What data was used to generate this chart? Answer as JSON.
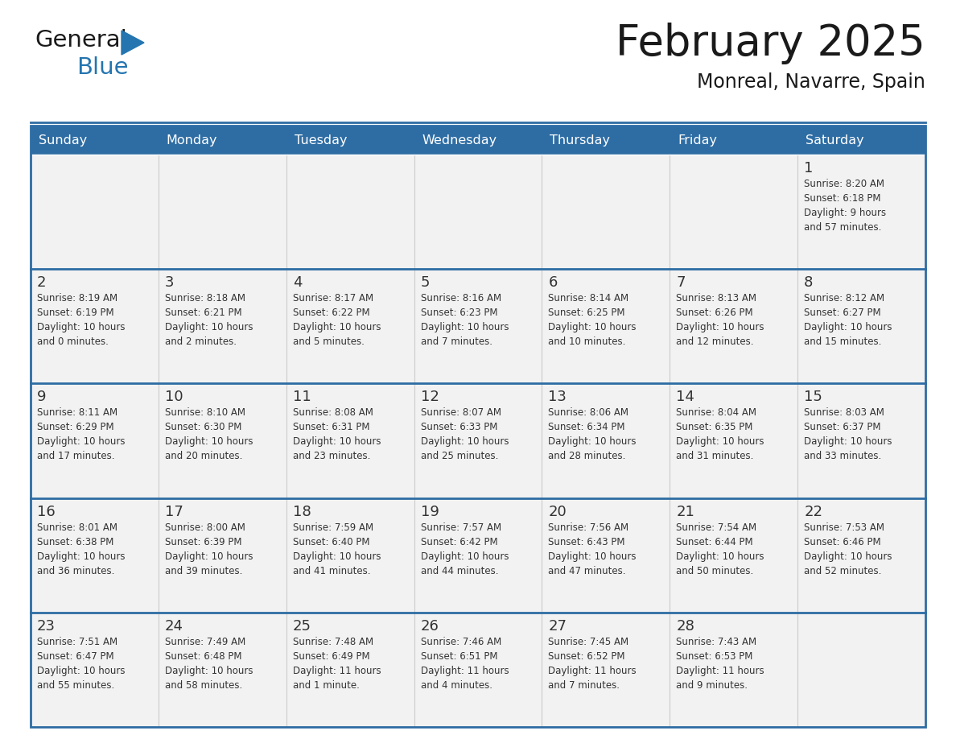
{
  "title": "February 2025",
  "subtitle": "Monreal, Navarre, Spain",
  "header_bg": "#2E6DA4",
  "header_text": "#FFFFFF",
  "cell_bg": "#F2F2F2",
  "border_color": "#2E6DA4",
  "row_separator_color": "#2E6DA4",
  "title_color": "#1a1a1a",
  "text_color": "#333333",
  "days_of_week": [
    "Sunday",
    "Monday",
    "Tuesday",
    "Wednesday",
    "Thursday",
    "Friday",
    "Saturday"
  ],
  "calendar_data": [
    [
      {
        "day": "",
        "info": ""
      },
      {
        "day": "",
        "info": ""
      },
      {
        "day": "",
        "info": ""
      },
      {
        "day": "",
        "info": ""
      },
      {
        "day": "",
        "info": ""
      },
      {
        "day": "",
        "info": ""
      },
      {
        "day": "1",
        "info": "Sunrise: 8:20 AM\nSunset: 6:18 PM\nDaylight: 9 hours\nand 57 minutes."
      }
    ],
    [
      {
        "day": "2",
        "info": "Sunrise: 8:19 AM\nSunset: 6:19 PM\nDaylight: 10 hours\nand 0 minutes."
      },
      {
        "day": "3",
        "info": "Sunrise: 8:18 AM\nSunset: 6:21 PM\nDaylight: 10 hours\nand 2 minutes."
      },
      {
        "day": "4",
        "info": "Sunrise: 8:17 AM\nSunset: 6:22 PM\nDaylight: 10 hours\nand 5 minutes."
      },
      {
        "day": "5",
        "info": "Sunrise: 8:16 AM\nSunset: 6:23 PM\nDaylight: 10 hours\nand 7 minutes."
      },
      {
        "day": "6",
        "info": "Sunrise: 8:14 AM\nSunset: 6:25 PM\nDaylight: 10 hours\nand 10 minutes."
      },
      {
        "day": "7",
        "info": "Sunrise: 8:13 AM\nSunset: 6:26 PM\nDaylight: 10 hours\nand 12 minutes."
      },
      {
        "day": "8",
        "info": "Sunrise: 8:12 AM\nSunset: 6:27 PM\nDaylight: 10 hours\nand 15 minutes."
      }
    ],
    [
      {
        "day": "9",
        "info": "Sunrise: 8:11 AM\nSunset: 6:29 PM\nDaylight: 10 hours\nand 17 minutes."
      },
      {
        "day": "10",
        "info": "Sunrise: 8:10 AM\nSunset: 6:30 PM\nDaylight: 10 hours\nand 20 minutes."
      },
      {
        "day": "11",
        "info": "Sunrise: 8:08 AM\nSunset: 6:31 PM\nDaylight: 10 hours\nand 23 minutes."
      },
      {
        "day": "12",
        "info": "Sunrise: 8:07 AM\nSunset: 6:33 PM\nDaylight: 10 hours\nand 25 minutes."
      },
      {
        "day": "13",
        "info": "Sunrise: 8:06 AM\nSunset: 6:34 PM\nDaylight: 10 hours\nand 28 minutes."
      },
      {
        "day": "14",
        "info": "Sunrise: 8:04 AM\nSunset: 6:35 PM\nDaylight: 10 hours\nand 31 minutes."
      },
      {
        "day": "15",
        "info": "Sunrise: 8:03 AM\nSunset: 6:37 PM\nDaylight: 10 hours\nand 33 minutes."
      }
    ],
    [
      {
        "day": "16",
        "info": "Sunrise: 8:01 AM\nSunset: 6:38 PM\nDaylight: 10 hours\nand 36 minutes."
      },
      {
        "day": "17",
        "info": "Sunrise: 8:00 AM\nSunset: 6:39 PM\nDaylight: 10 hours\nand 39 minutes."
      },
      {
        "day": "18",
        "info": "Sunrise: 7:59 AM\nSunset: 6:40 PM\nDaylight: 10 hours\nand 41 minutes."
      },
      {
        "day": "19",
        "info": "Sunrise: 7:57 AM\nSunset: 6:42 PM\nDaylight: 10 hours\nand 44 minutes."
      },
      {
        "day": "20",
        "info": "Sunrise: 7:56 AM\nSunset: 6:43 PM\nDaylight: 10 hours\nand 47 minutes."
      },
      {
        "day": "21",
        "info": "Sunrise: 7:54 AM\nSunset: 6:44 PM\nDaylight: 10 hours\nand 50 minutes."
      },
      {
        "day": "22",
        "info": "Sunrise: 7:53 AM\nSunset: 6:46 PM\nDaylight: 10 hours\nand 52 minutes."
      }
    ],
    [
      {
        "day": "23",
        "info": "Sunrise: 7:51 AM\nSunset: 6:47 PM\nDaylight: 10 hours\nand 55 minutes."
      },
      {
        "day": "24",
        "info": "Sunrise: 7:49 AM\nSunset: 6:48 PM\nDaylight: 10 hours\nand 58 minutes."
      },
      {
        "day": "25",
        "info": "Sunrise: 7:48 AM\nSunset: 6:49 PM\nDaylight: 11 hours\nand 1 minute."
      },
      {
        "day": "26",
        "info": "Sunrise: 7:46 AM\nSunset: 6:51 PM\nDaylight: 11 hours\nand 4 minutes."
      },
      {
        "day": "27",
        "info": "Sunrise: 7:45 AM\nSunset: 6:52 PM\nDaylight: 11 hours\nand 7 minutes."
      },
      {
        "day": "28",
        "info": "Sunrise: 7:43 AM\nSunset: 6:53 PM\nDaylight: 11 hours\nand 9 minutes."
      },
      {
        "day": "",
        "info": ""
      }
    ]
  ],
  "logo_text_general": "General",
  "logo_text_blue": "Blue",
  "logo_color_general": "#1a1a1a",
  "logo_color_blue": "#2475B0",
  "logo_triangle_color": "#2475B0",
  "fig_width": 11.88,
  "fig_height": 9.18,
  "dpi": 100
}
